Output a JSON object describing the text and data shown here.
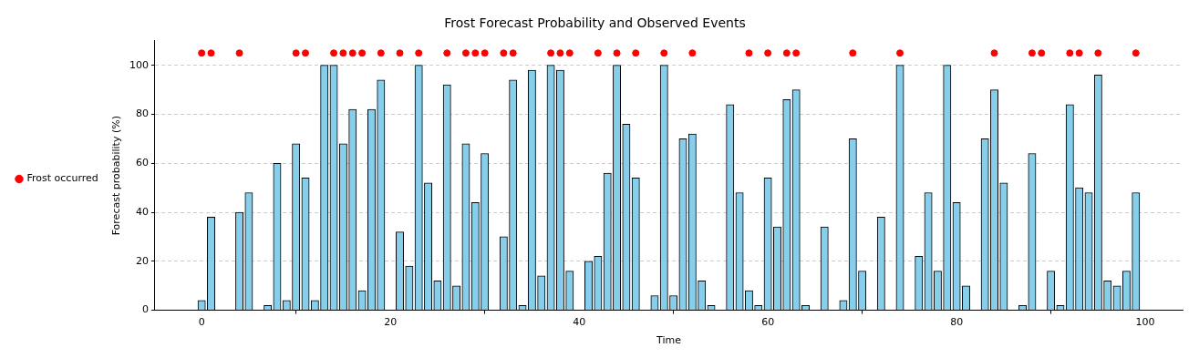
{
  "chart_data": {
    "type": "bar",
    "title": "Frost Forecast Probability and Observed Events",
    "xlabel": "Time",
    "ylabel": "Forecast probability (%)",
    "x": [
      0,
      1,
      2,
      3,
      4,
      5,
      6,
      7,
      8,
      9,
      10,
      11,
      12,
      13,
      14,
      15,
      16,
      17,
      18,
      19,
      20,
      21,
      22,
      23,
      24,
      25,
      26,
      27,
      28,
      29,
      30,
      31,
      32,
      33,
      34,
      35,
      36,
      37,
      38,
      39,
      40,
      41,
      42,
      43,
      44,
      45,
      46,
      47,
      48,
      49,
      50,
      51,
      52,
      53,
      54,
      55,
      56,
      57,
      58,
      59,
      60,
      61,
      62,
      63,
      64,
      65,
      66,
      67,
      68,
      69,
      70,
      71,
      72,
      73,
      74,
      75,
      76,
      77,
      78,
      79,
      80,
      81,
      82,
      83,
      84,
      85,
      86,
      87,
      88,
      89,
      90,
      91,
      92,
      93,
      94,
      95,
      96,
      97,
      98,
      99
    ],
    "series": [
      {
        "color": "#87ceeb",
        "values": [
          4,
          38,
          0,
          0,
          40,
          48,
          0,
          2,
          60,
          4,
          68,
          54,
          4,
          100,
          100,
          68,
          82,
          8,
          82,
          94,
          0,
          32,
          18,
          100,
          52,
          12,
          92,
          10,
          68,
          44,
          64,
          0,
          30,
          94,
          2,
          98,
          14,
          100,
          98,
          16,
          0,
          20,
          22,
          56,
          100,
          76,
          54,
          0,
          6,
          100,
          6,
          70,
          72,
          12,
          2,
          0,
          84,
          48,
          8,
          2,
          54,
          34,
          86,
          90,
          2,
          0,
          34,
          0,
          4,
          70,
          16,
          0,
          38,
          0,
          100,
          0,
          22,
          48,
          16,
          100,
          44,
          10,
          0,
          70,
          90,
          52,
          0,
          2,
          64,
          0,
          16,
          2,
          84,
          50,
          48,
          96,
          12,
          10,
          16,
          48
        ]
      },
      {
        "type": "scatter",
        "name": "Frost occurred",
        "color": "#ff0000",
        "x": [
          0,
          1,
          4,
          10,
          11,
          14,
          15,
          16,
          17,
          19,
          21,
          23,
          26,
          28,
          29,
          30,
          32,
          33,
          37,
          38,
          39,
          42,
          44,
          46,
          49,
          52,
          58,
          60,
          62,
          63,
          69,
          74,
          84,
          88,
          89,
          92,
          93,
          95,
          99
        ],
        "values": [
          105,
          105,
          105,
          105,
          105,
          105,
          105,
          105,
          105,
          105,
          105,
          105,
          105,
          105,
          105,
          105,
          105,
          105,
          105,
          105,
          105,
          105,
          105,
          105,
          105,
          105,
          105,
          105,
          105,
          105,
          105,
          105,
          105,
          105,
          105,
          105,
          105,
          105,
          105
        ]
      }
    ],
    "xlim": [
      -4.95,
      103.95
    ],
    "xticks": [
      0,
      20,
      40,
      60,
      80,
      100
    ],
    "ylim": [
      0,
      110
    ],
    "yticks": [
      0,
      20,
      40,
      60,
      80,
      100
    ],
    "grid": "y",
    "legend": "left",
    "marker": "circle"
  }
}
